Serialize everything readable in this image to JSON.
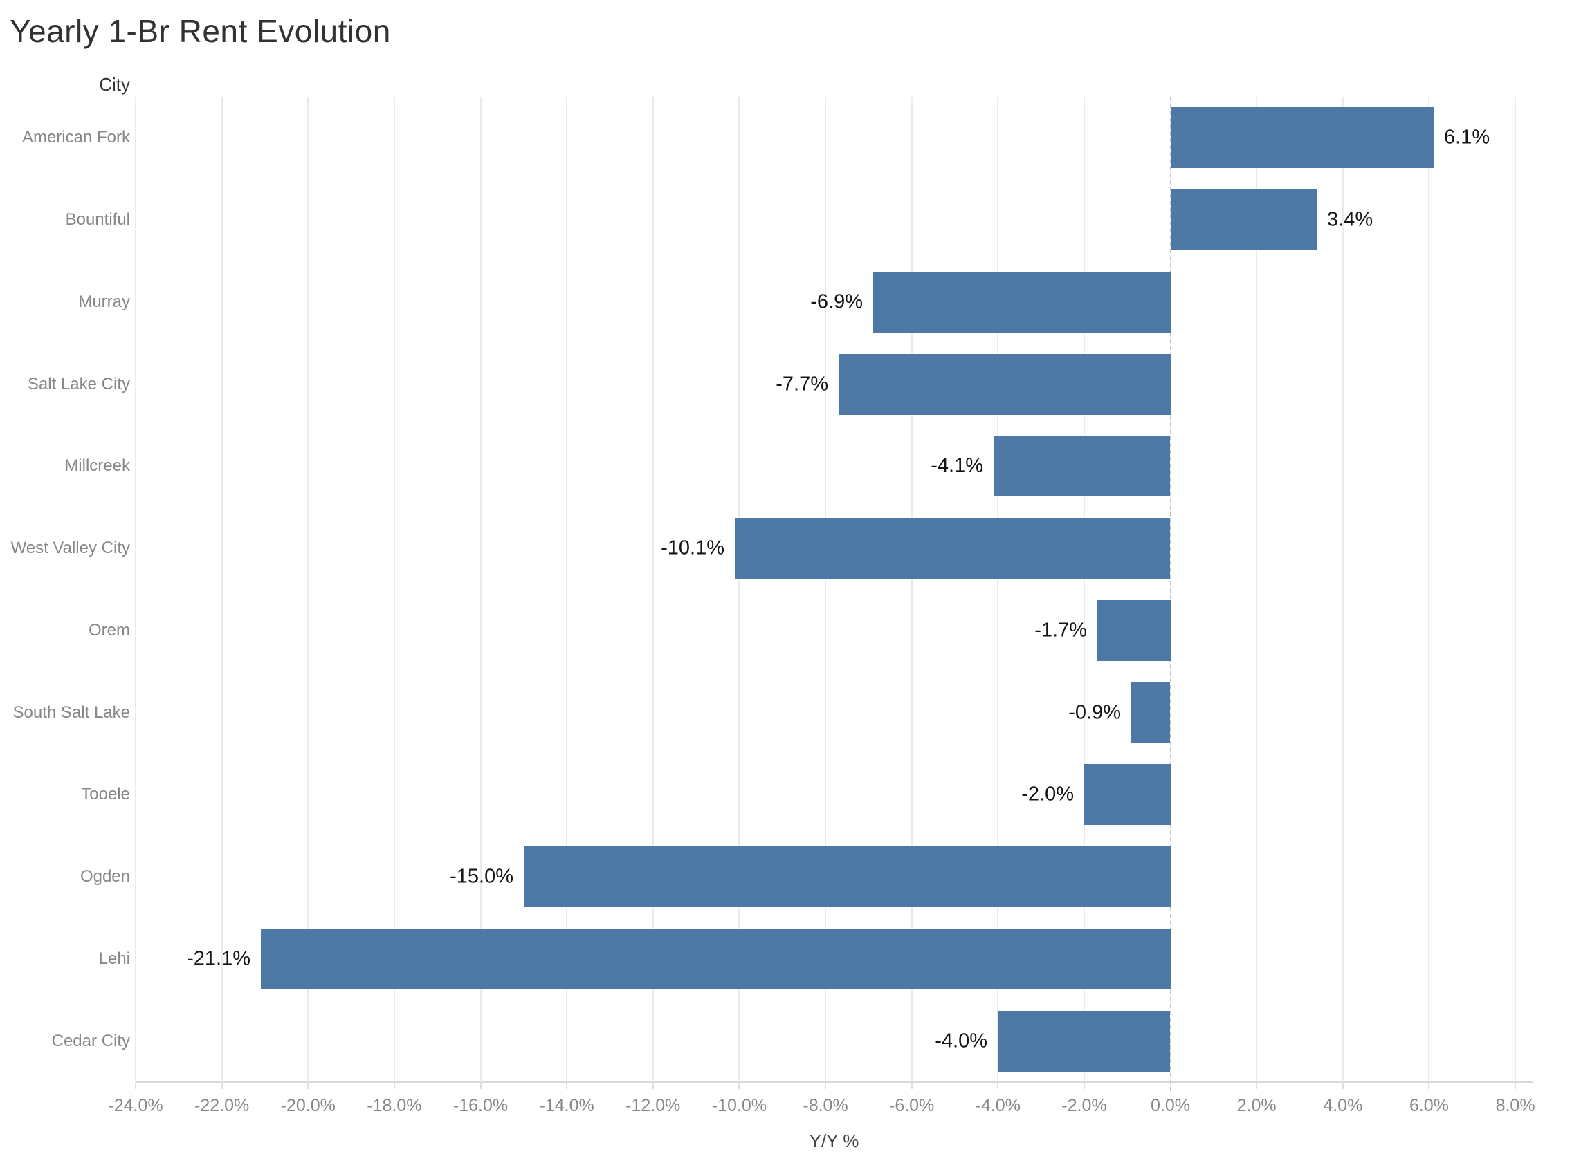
{
  "title": "Yearly 1-Br Rent Evolution",
  "chart_data": {
    "type": "bar",
    "orientation": "horizontal",
    "title": "Yearly 1-Br Rent Evolution",
    "row_header": "City",
    "xlabel": "Y/Y %",
    "categories": [
      "American Fork",
      "Bountiful",
      "Murray",
      "Salt Lake City",
      "Millcreek",
      "West Valley City",
      "Orem",
      "South Salt Lake",
      "Tooele",
      "Ogden",
      "Lehi",
      "Cedar City"
    ],
    "values": [
      6.1,
      3.4,
      -6.9,
      -7.7,
      -4.1,
      -10.1,
      -1.7,
      -0.9,
      -2.0,
      -15.0,
      -21.1,
      -4.0
    ],
    "bar_labels": [
      "6.1%",
      "3.4%",
      "-6.9%",
      "-7.7%",
      "-4.1%",
      "-10.1%",
      "-1.7%",
      "-0.9%",
      "-2.0%",
      "-15.0%",
      "-21.1%",
      "-4.0%"
    ],
    "xlim": [
      -24.0,
      8.4
    ],
    "xticks": [
      -24,
      -22,
      -20,
      -18,
      -16,
      -14,
      -12,
      -10,
      -8,
      -6,
      -4,
      -2,
      0,
      2,
      4,
      6,
      8
    ],
    "xtick_labels": [
      "-24.0%",
      "-22.0%",
      "-20.0%",
      "-18.0%",
      "-16.0%",
      "-14.0%",
      "-12.0%",
      "-10.0%",
      "-8.0%",
      "-6.0%",
      "-4.0%",
      "-2.0%",
      "0.0%",
      "2.0%",
      "4.0%",
      "6.0%",
      "8.0%"
    ],
    "grid": true,
    "legend": "none",
    "zero_line_style": "dashed",
    "colors": {
      "bar": "#4e79a7",
      "grid": "#ebebeb",
      "zero_line": "#c6c6c6",
      "axis_line": "#d8d8d8",
      "tick_text": "#878787",
      "category_text": "#878787",
      "data_label_text": "#141414",
      "title_text": "#323232",
      "header_text": "#333333"
    }
  }
}
